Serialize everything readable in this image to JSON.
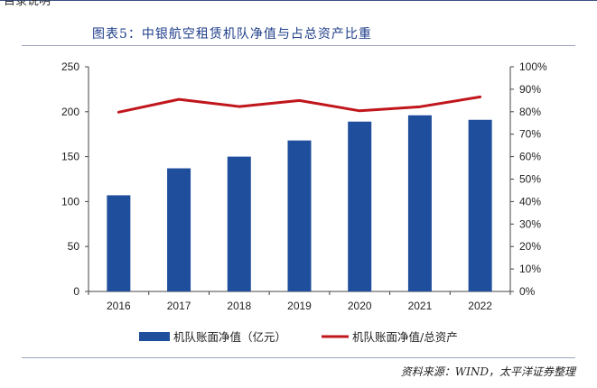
{
  "corner_text": "目录说明",
  "title": "图表5：中银航空租赁机队净值与占总资产比重",
  "source": "资料来源：WIND，太平洋证券整理",
  "colors": {
    "bar": "#1f4e9c",
    "line": "#c0161c",
    "axis": "#444444"
  },
  "chart_data": {
    "type": "bar",
    "categories": [
      "2016",
      "2017",
      "2018",
      "2019",
      "2020",
      "2021",
      "2022"
    ],
    "series": [
      {
        "name": "机队账面净值（亿元）",
        "type": "bar",
        "axis": "left",
        "values": [
          107,
          137,
          150,
          168,
          189,
          196,
          191
        ]
      },
      {
        "name": "机队账面净值/总资产",
        "type": "line",
        "axis": "right",
        "values": [
          79.8,
          85.5,
          82.3,
          85.0,
          80.4,
          82.2,
          86.6
        ]
      }
    ],
    "y_left": {
      "ylim": [
        0,
        250
      ],
      "ticks": [
        "0",
        "50",
        "100",
        "150",
        "200",
        "250"
      ]
    },
    "y_right": {
      "ylim": [
        0,
        100
      ],
      "ticks": [
        "0%",
        "10%",
        "20%",
        "30%",
        "40%",
        "50%",
        "60%",
        "70%",
        "80%",
        "90%",
        "100%"
      ]
    },
    "legend_position": "bottom",
    "grid": false
  }
}
